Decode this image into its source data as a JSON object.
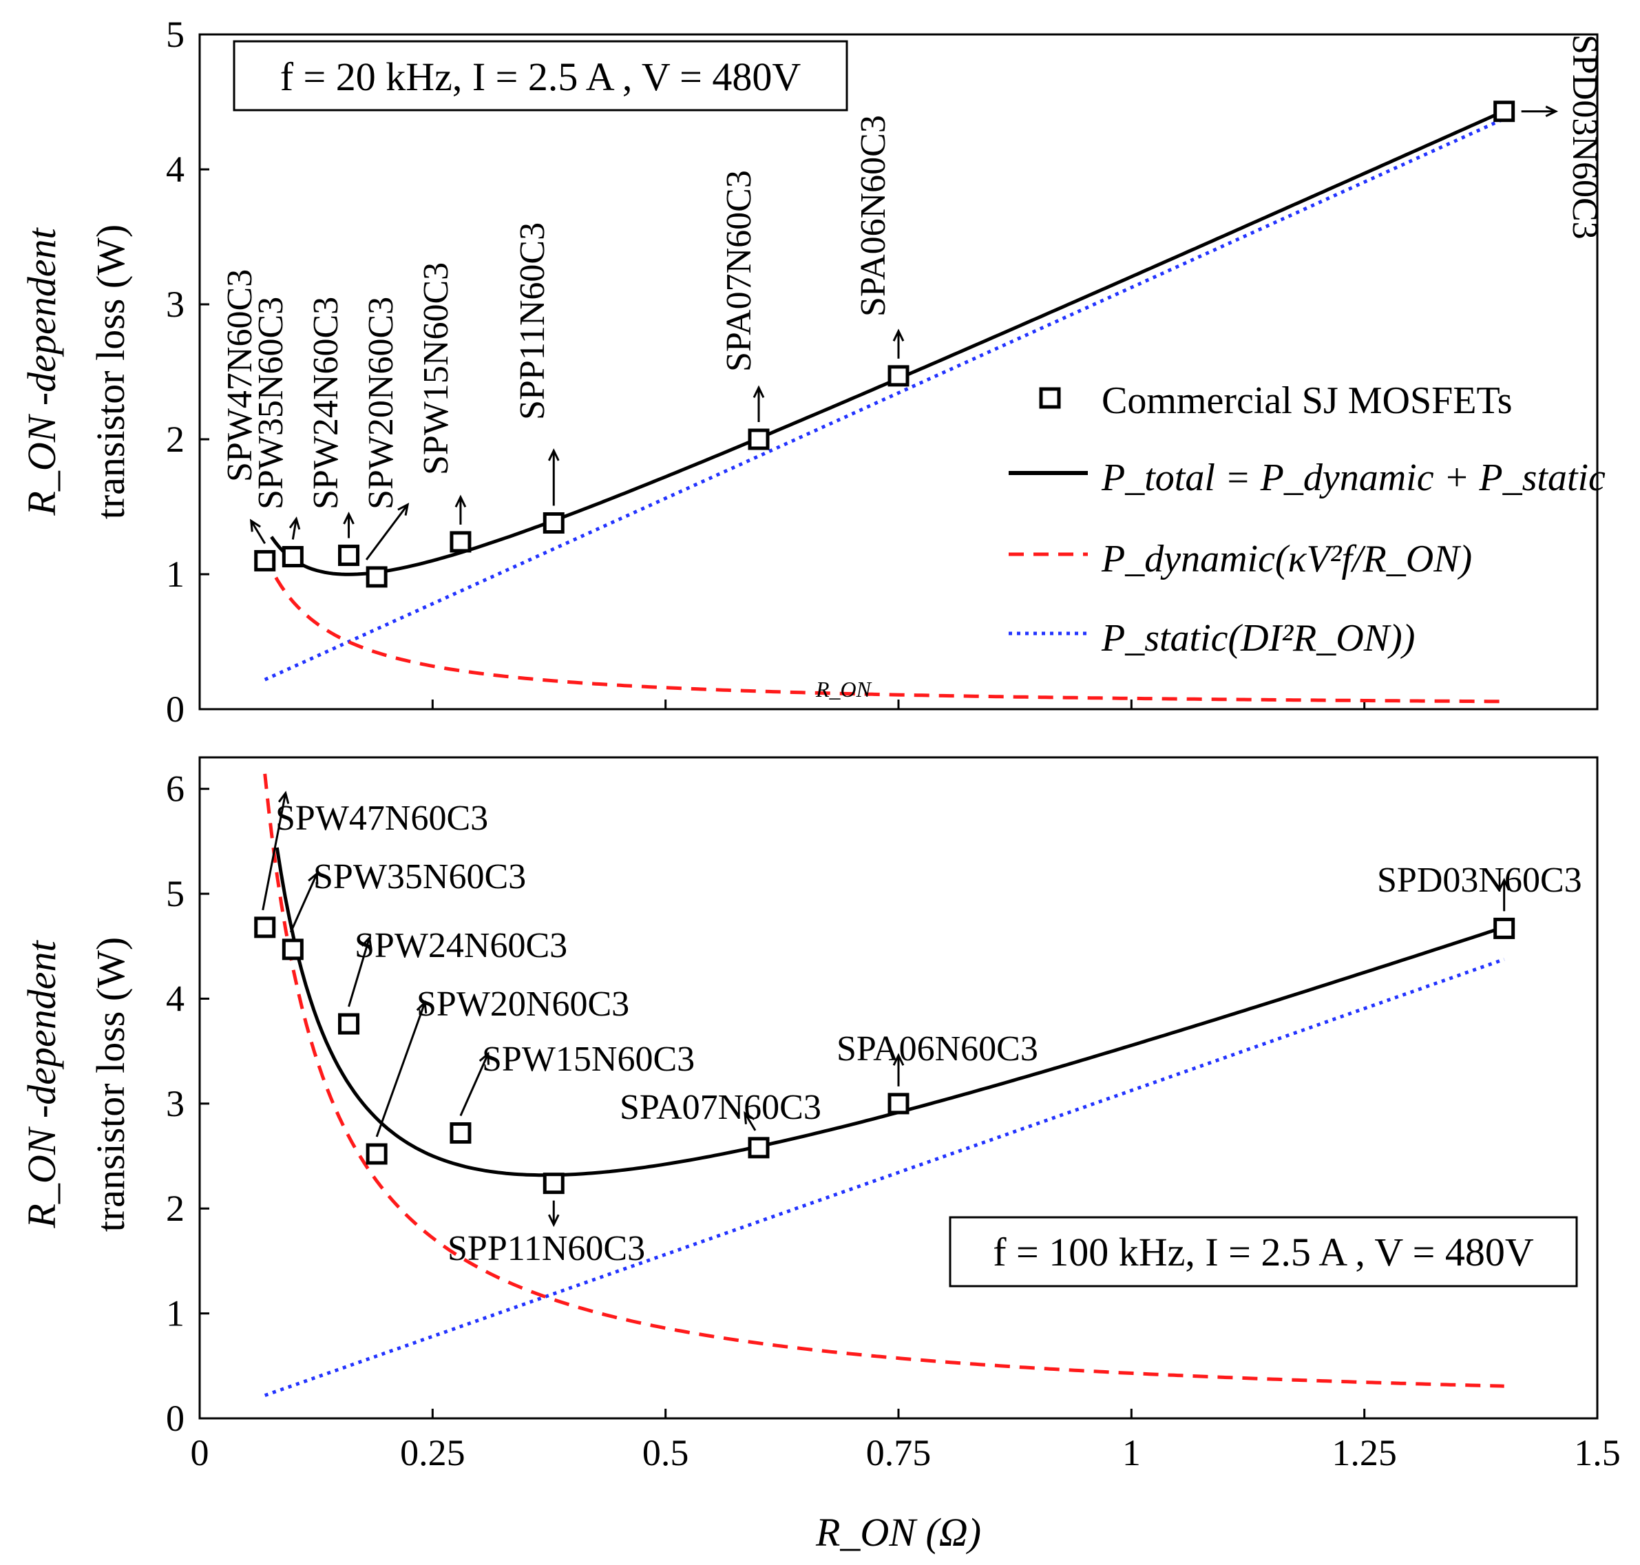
{
  "chart_data": [
    {
      "type": "line",
      "condition": "f = 20 kHz, I = 2.5 A , V = 480V",
      "xlabel": "R_ON (Ω)",
      "ylabel_line1": "R_ON -dependent",
      "ylabel_line2": "transistor loss (W)",
      "xlim": [
        0,
        1.5
      ],
      "ylim": [
        0,
        5
      ],
      "x_ticks": [
        "0",
        "0.25",
        "0.5",
        "0.75",
        "1",
        "1.25",
        "1.5"
      ],
      "y_ticks": [
        "0",
        "1",
        "2",
        "3",
        "4",
        "5"
      ],
      "stray_label": "R_ON",
      "legend": {
        "position": "right",
        "markers": "Commercial SJ MOSFETs",
        "total": "P_total = P_dynamic + P_static",
        "dynamic": "P_dynamic(κV²f/R_ON)",
        "static": "P_static(DI²R_ON))"
      },
      "model": {
        "kappa_V2_f": 0.0798,
        "D_I2": 3.125
      },
      "devices": [
        {
          "name": "SPW47N60C3",
          "x": 0.07,
          "y": 1.1
        },
        {
          "name": "SPW35N60C3",
          "x": 0.1,
          "y": 1.13
        },
        {
          "name": "SPW24N60C3",
          "x": 0.16,
          "y": 1.14
        },
        {
          "name": "SPW20N60C3",
          "x": 0.19,
          "y": 0.98
        },
        {
          "name": "SPW15N60C3",
          "x": 0.28,
          "y": 1.24
        },
        {
          "name": "SPP11N60C3",
          "x": 0.38,
          "y": 1.38
        },
        {
          "name": "SPA07N60C3",
          "x": 0.6,
          "y": 2.0
        },
        {
          "name": "SPA06N60C3",
          "x": 0.75,
          "y": 2.47
        },
        {
          "name": "SPD03N60C3",
          "x": 1.4,
          "y": 4.43
        }
      ]
    },
    {
      "type": "line",
      "condition": "f = 100 kHz, I = 2.5 A , V = 480V",
      "xlabel": "R_ON (Ω)",
      "ylabel_line1": "R_ON -dependent",
      "ylabel_line2": "transistor loss (W)",
      "xlim": [
        0,
        1.5
      ],
      "ylim": [
        0,
        6.3
      ],
      "x_ticks": [
        "0",
        "0.25",
        "0.5",
        "0.75",
        "1",
        "1.25",
        "1.5"
      ],
      "y_ticks": [
        "0",
        "1",
        "2",
        "3",
        "4",
        "5",
        "6"
      ],
      "model": {
        "kappa_V2_f": 0.43,
        "D_I2": 3.125
      },
      "devices": [
        {
          "name": "SPW47N60C3",
          "x": 0.07,
          "y": 4.68
        },
        {
          "name": "SPW35N60C3",
          "x": 0.1,
          "y": 4.47
        },
        {
          "name": "SPW24N60C3",
          "x": 0.16,
          "y": 3.76
        },
        {
          "name": "SPW20N60C3",
          "x": 0.19,
          "y": 2.52
        },
        {
          "name": "SPW15N60C3",
          "x": 0.28,
          "y": 2.72
        },
        {
          "name": "SPP11N60C3",
          "x": 0.38,
          "y": 2.24
        },
        {
          "name": "SPA07N60C3",
          "x": 0.6,
          "y": 2.58
        },
        {
          "name": "SPA06N60C3",
          "x": 0.75,
          "y": 3.0
        },
        {
          "name": "SPD03N60C3",
          "x": 1.4,
          "y": 4.67
        }
      ]
    }
  ]
}
